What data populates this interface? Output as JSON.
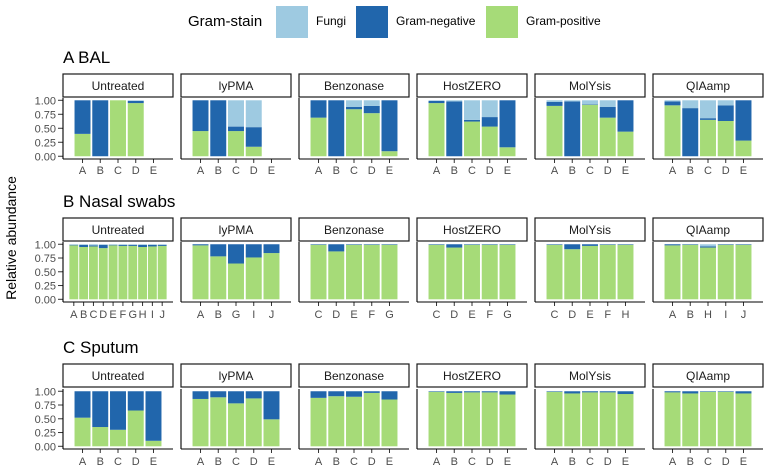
{
  "legend": {
    "title": "Gram-stain",
    "items": [
      {
        "label": "Fungi",
        "color": "#9ecae1"
      },
      {
        "label": "Gram-negative",
        "color": "#2166ac"
      },
      {
        "label": "Gram-positive",
        "color": "#a6db78"
      }
    ]
  },
  "y_label": "Relative abundance",
  "chart_data": {
    "type": "bar",
    "stacked": true,
    "stack_order": [
      "Gram-positive",
      "Gram-negative",
      "Fungi"
    ],
    "ylim": [
      0,
      1
    ],
    "yticks": [
      "0.00",
      "0.25",
      "0.50",
      "0.75",
      "1.00"
    ],
    "rows": [
      {
        "id": "A",
        "title": "BAL",
        "facets": [
          {
            "label": "Untreated",
            "categories": [
              "A",
              "B",
              "C",
              "D",
              "E"
            ],
            "values": {
              "Gram-positive": [
                0.4,
                0.0,
                1.0,
                0.95,
                null
              ],
              "Gram-negative": [
                0.6,
                1.0,
                0.0,
                0.04,
                null
              ],
              "Fungi": [
                0.0,
                0.0,
                0.0,
                0.01,
                null
              ]
            }
          },
          {
            "label": "lyPMA",
            "categories": [
              "A",
              "B",
              "C",
              "D",
              "E"
            ],
            "values": {
              "Gram-positive": [
                0.45,
                0.0,
                0.45,
                0.17,
                null
              ],
              "Gram-negative": [
                0.55,
                1.0,
                0.08,
                0.35,
                null
              ],
              "Fungi": [
                0.0,
                0.0,
                0.47,
                0.48,
                null
              ]
            }
          },
          {
            "label": "Benzonase",
            "categories": [
              "A",
              "B",
              "C",
              "D",
              "E"
            ],
            "values": {
              "Gram-positive": [
                0.69,
                0.0,
                0.84,
                0.77,
                0.09
              ],
              "Gram-negative": [
                0.31,
                1.0,
                0.04,
                0.13,
                0.91
              ],
              "Fungi": [
                0.0,
                0.0,
                0.12,
                0.1,
                0.0
              ]
            }
          },
          {
            "label": "HostZERO",
            "categories": [
              "A",
              "B",
              "C",
              "D",
              "E"
            ],
            "values": {
              "Gram-positive": [
                0.95,
                0.0,
                0.62,
                0.53,
                0.16
              ],
              "Gram-negative": [
                0.04,
                0.98,
                0.03,
                0.17,
                0.84
              ],
              "Fungi": [
                0.01,
                0.02,
                0.35,
                0.3,
                0.0
              ]
            }
          },
          {
            "label": "MolYsis",
            "categories": [
              "A",
              "B",
              "C",
              "D",
              "E"
            ],
            "values": {
              "Gram-positive": [
                0.9,
                0.0,
                0.92,
                0.69,
                0.44
              ],
              "Gram-negative": [
                0.07,
                0.98,
                0.01,
                0.19,
                0.56
              ],
              "Fungi": [
                0.03,
                0.02,
                0.07,
                0.12,
                0.0
              ]
            }
          },
          {
            "label": "QIAamp",
            "categories": [
              "A",
              "B",
              "C",
              "D",
              "E"
            ],
            "values": {
              "Gram-positive": [
                0.91,
                0.0,
                0.65,
                0.63,
                0.28
              ],
              "Gram-negative": [
                0.07,
                0.86,
                0.03,
                0.28,
                0.72
              ],
              "Fungi": [
                0.02,
                0.14,
                0.32,
                0.09,
                0.0
              ]
            }
          }
        ]
      },
      {
        "id": "B",
        "title": "Nasal swabs",
        "facets": [
          {
            "label": "Untreated",
            "categories": [
              "A",
              "B",
              "C",
              "D",
              "E",
              "F",
              "G",
              "H",
              "I",
              "J"
            ],
            "values": {
              "Gram-positive": [
                0.98,
                0.95,
                0.96,
                0.93,
                0.98,
                0.97,
                0.97,
                0.95,
                0.96,
                0.97
              ],
              "Gram-negative": [
                0.01,
                0.04,
                0.02,
                0.06,
                0.01,
                0.02,
                0.02,
                0.04,
                0.03,
                0.02
              ],
              "Fungi": [
                0.01,
                0.01,
                0.02,
                0.01,
                0.01,
                0.01,
                0.01,
                0.01,
                0.01,
                0.01
              ]
            }
          },
          {
            "label": "lyPMA",
            "categories": [
              "A",
              "B",
              "G",
              "I",
              "J"
            ],
            "values": {
              "Gram-positive": [
                0.98,
                0.78,
                0.65,
                0.76,
                0.84
              ],
              "Gram-negative": [
                0.02,
                0.22,
                0.35,
                0.24,
                0.16
              ],
              "Fungi": [
                0.0,
                0.0,
                0.0,
                0.0,
                0.0
              ]
            }
          },
          {
            "label": "Benzonase",
            "categories": [
              "C",
              "D",
              "E",
              "F",
              "G"
            ],
            "values": {
              "Gram-positive": [
                0.99,
                0.87,
                0.99,
                0.99,
                0.99
              ],
              "Gram-negative": [
                0.01,
                0.13,
                0.01,
                0.01,
                0.01
              ],
              "Fungi": [
                0.0,
                0.0,
                0.0,
                0.0,
                0.0
              ]
            }
          },
          {
            "label": "HostZERO",
            "categories": [
              "C",
              "D",
              "E",
              "F",
              "G"
            ],
            "values": {
              "Gram-positive": [
                0.99,
                0.94,
                0.99,
                0.99,
                0.99
              ],
              "Gram-negative": [
                0.01,
                0.06,
                0.01,
                0.01,
                0.01
              ],
              "Fungi": [
                0.0,
                0.0,
                0.0,
                0.0,
                0.0
              ]
            }
          },
          {
            "label": "MolYsis",
            "categories": [
              "C",
              "D",
              "E",
              "F",
              "H"
            ],
            "values": {
              "Gram-positive": [
                0.99,
                0.91,
                0.97,
                0.99,
                0.99
              ],
              "Gram-negative": [
                0.01,
                0.09,
                0.03,
                0.01,
                0.01
              ],
              "Fungi": [
                0.0,
                0.0,
                0.0,
                0.0,
                0.0
              ]
            }
          },
          {
            "label": "QIAamp",
            "categories": [
              "A",
              "B",
              "H",
              "I",
              "J"
            ],
            "values": {
              "Gram-positive": [
                0.98,
                0.99,
                0.94,
                0.99,
                0.99
              ],
              "Gram-negative": [
                0.02,
                0.01,
                0.02,
                0.01,
                0.01
              ],
              "Fungi": [
                0.0,
                0.0,
                0.04,
                0.0,
                0.0
              ]
            }
          }
        ]
      },
      {
        "id": "C",
        "title": "Sputum",
        "facets": [
          {
            "label": "Untreated",
            "categories": [
              "A",
              "B",
              "C",
              "D",
              "E"
            ],
            "values": {
              "Gram-positive": [
                0.52,
                0.35,
                0.3,
                0.65,
                0.1
              ],
              "Gram-negative": [
                0.48,
                0.65,
                0.7,
                0.35,
                0.9
              ],
              "Fungi": [
                0.0,
                0.0,
                0.0,
                0.0,
                0.0
              ]
            }
          },
          {
            "label": "lyPMA",
            "categories": [
              "A",
              "B",
              "C",
              "D",
              "E"
            ],
            "values": {
              "Gram-positive": [
                0.86,
                0.89,
                0.78,
                0.87,
                0.49
              ],
              "Gram-negative": [
                0.14,
                0.11,
                0.22,
                0.13,
                0.51
              ],
              "Fungi": [
                0.0,
                0.0,
                0.0,
                0.0,
                0.0
              ]
            }
          },
          {
            "label": "Benzonase",
            "categories": [
              "A",
              "B",
              "C",
              "D",
              "E"
            ],
            "values": {
              "Gram-positive": [
                0.88,
                0.91,
                0.9,
                0.97,
                0.85
              ],
              "Gram-negative": [
                0.12,
                0.09,
                0.1,
                0.03,
                0.15
              ],
              "Fungi": [
                0.0,
                0.0,
                0.0,
                0.0,
                0.0
              ]
            }
          },
          {
            "label": "HostZERO",
            "categories": [
              "A",
              "B",
              "C",
              "D",
              "E"
            ],
            "values": {
              "Gram-positive": [
                0.99,
                0.97,
                0.98,
                0.98,
                0.94
              ],
              "Gram-negative": [
                0.01,
                0.03,
                0.02,
                0.02,
                0.06
              ],
              "Fungi": [
                0.0,
                0.0,
                0.0,
                0.0,
                0.0
              ]
            }
          },
          {
            "label": "MolYsis",
            "categories": [
              "A",
              "B",
              "C",
              "D",
              "E"
            ],
            "values": {
              "Gram-positive": [
                0.99,
                0.96,
                0.98,
                0.98,
                0.95
              ],
              "Gram-negative": [
                0.01,
                0.04,
                0.02,
                0.02,
                0.05
              ],
              "Fungi": [
                0.0,
                0.0,
                0.0,
                0.0,
                0.0
              ]
            }
          },
          {
            "label": "QIAamp",
            "categories": [
              "A",
              "B",
              "C",
              "D",
              "E"
            ],
            "values": {
              "Gram-positive": [
                0.98,
                0.96,
                0.99,
                0.99,
                0.96
              ],
              "Gram-negative": [
                0.02,
                0.04,
                0.01,
                0.01,
                0.04
              ],
              "Fungi": [
                0.0,
                0.0,
                0.0,
                0.0,
                0.0
              ]
            }
          }
        ]
      }
    ]
  }
}
